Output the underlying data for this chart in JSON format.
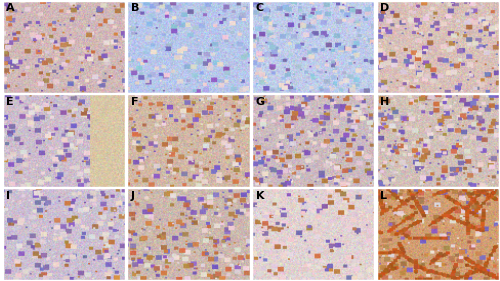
{
  "labels": [
    "A",
    "B",
    "C",
    "D",
    "E",
    "F",
    "G",
    "H",
    "I",
    "J",
    "K",
    "L"
  ],
  "nrows": 3,
  "ncols": 4,
  "fig_width": 5.0,
  "fig_height": 2.81,
  "dpi": 100,
  "label_fontsize": 8,
  "label_color": "black",
  "border_color": "white",
  "border_lw": 1,
  "panel_configs": [
    {
      "base_rgb": [
        0.82,
        0.72,
        0.72
      ],
      "purple_amt": 0.35,
      "brown_amt": 0.3,
      "blue_tint": 0.0,
      "style": "ihc_brown"
    },
    {
      "base_rgb": [
        0.72,
        0.78,
        0.92
      ],
      "purple_amt": 0.2,
      "brown_amt": 0.0,
      "blue_tint": 0.55,
      "style": "ihc_blue"
    },
    {
      "base_rgb": [
        0.75,
        0.8,
        0.92
      ],
      "purple_amt": 0.2,
      "brown_amt": 0.0,
      "blue_tint": 0.5,
      "style": "ihc_blue"
    },
    {
      "base_rgb": [
        0.85,
        0.75,
        0.72
      ],
      "purple_amt": 0.3,
      "brown_amt": 0.2,
      "blue_tint": 0.0,
      "style": "ihc_brown_light"
    },
    {
      "base_rgb": [
        0.8,
        0.74,
        0.8
      ],
      "purple_amt": 0.4,
      "brown_amt": 0.1,
      "blue_tint": 0.0,
      "style": "ihc_edge"
    },
    {
      "base_rgb": [
        0.82,
        0.72,
        0.65
      ],
      "purple_amt": 0.25,
      "brown_amt": 0.45,
      "blue_tint": 0.0,
      "style": "ihc_brown_strong"
    },
    {
      "base_rgb": [
        0.8,
        0.73,
        0.75
      ],
      "purple_amt": 0.35,
      "brown_amt": 0.25,
      "blue_tint": 0.0,
      "style": "ihc_brown"
    },
    {
      "base_rgb": [
        0.82,
        0.75,
        0.72
      ],
      "purple_amt": 0.3,
      "brown_amt": 0.3,
      "blue_tint": 0.0,
      "style": "ihc_brown"
    },
    {
      "base_rgb": [
        0.8,
        0.75,
        0.82
      ],
      "purple_amt": 0.38,
      "brown_amt": 0.15,
      "blue_tint": 0.0,
      "style": "ihc_mixed"
    },
    {
      "base_rgb": [
        0.8,
        0.72,
        0.68
      ],
      "purple_amt": 0.28,
      "brown_amt": 0.38,
      "blue_tint": 0.0,
      "style": "ihc_brown_strong"
    },
    {
      "base_rgb": [
        0.88,
        0.82,
        0.82
      ],
      "purple_amt": 0.15,
      "brown_amt": 0.12,
      "blue_tint": 0.0,
      "style": "ihc_pale"
    },
    {
      "base_rgb": [
        0.82,
        0.62,
        0.45
      ],
      "purple_amt": 0.15,
      "brown_amt": 0.65,
      "blue_tint": 0.0,
      "style": "ihc_dark_brown"
    }
  ],
  "background_color": "#ffffff"
}
